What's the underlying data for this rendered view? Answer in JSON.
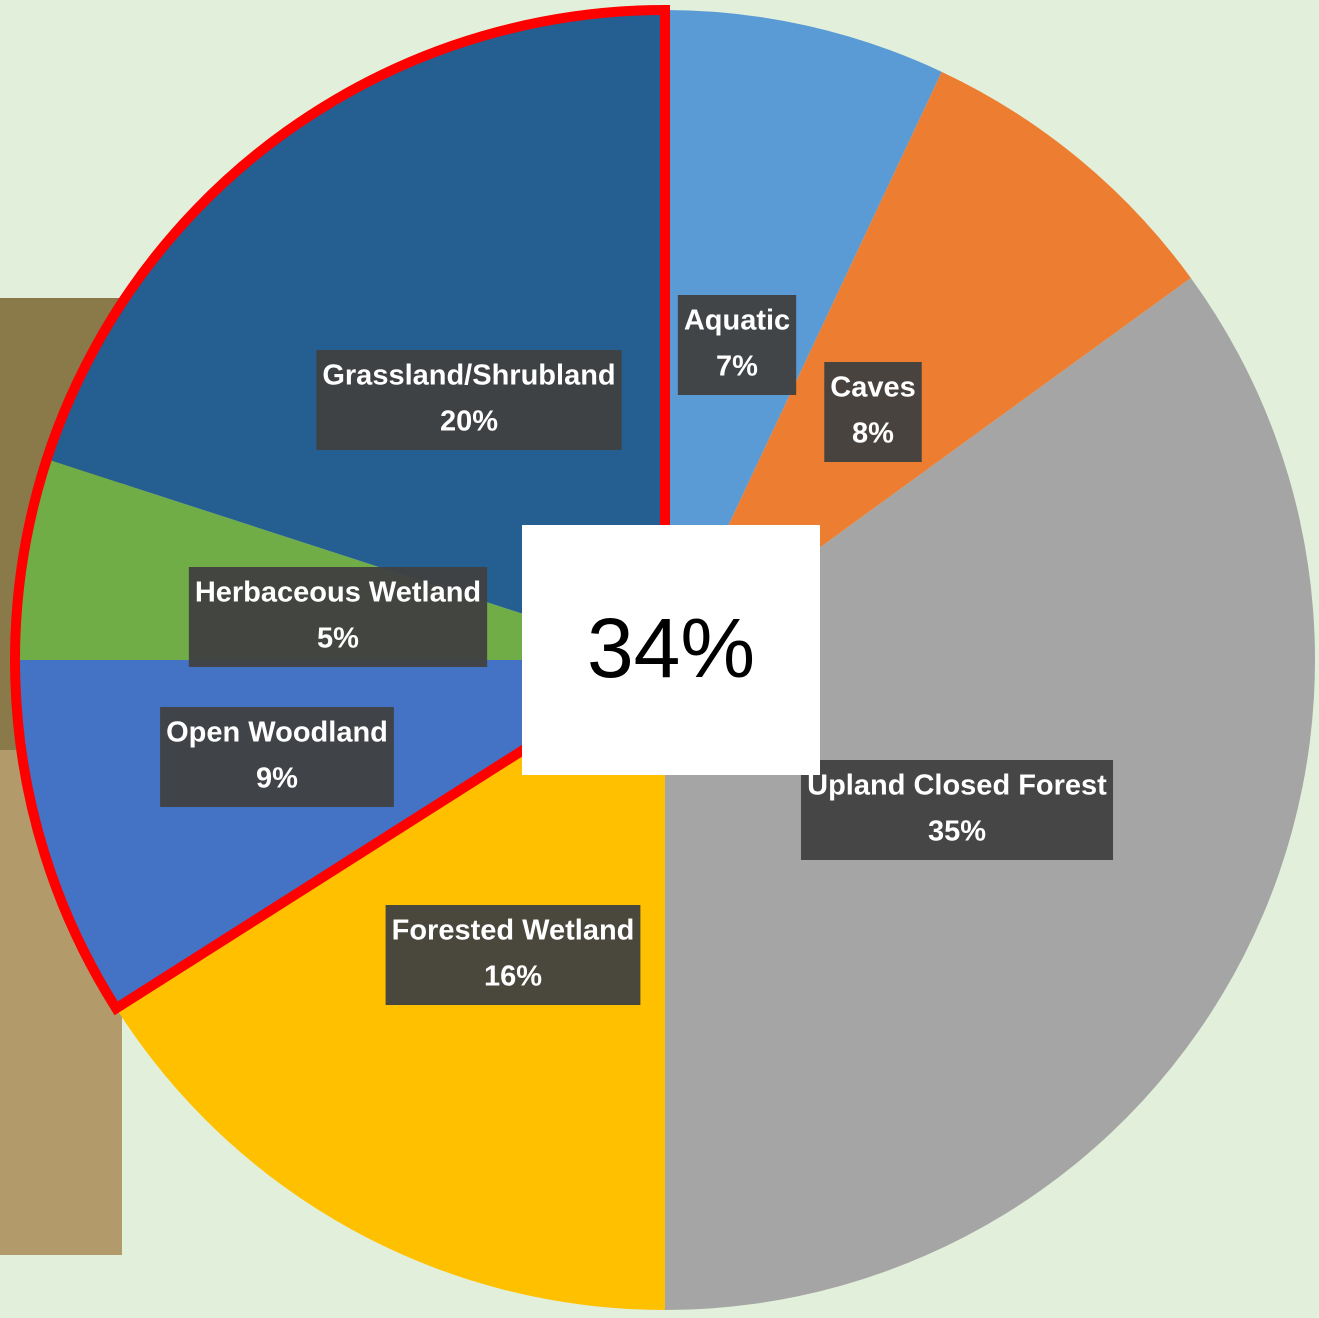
{
  "chart_data": {
    "type": "pie",
    "categories": [
      "Aquatic",
      "Caves",
      "Upland Closed Forest",
      "Forested Wetland",
      "Open Woodland",
      "Herbaceous Wetland",
      "Grassland/Shrubland"
    ],
    "values": [
      7,
      8,
      35,
      16,
      9,
      5,
      20
    ],
    "value_labels": [
      "7%",
      "8%",
      "35%",
      "16%",
      "9%",
      "5%",
      "20%"
    ],
    "colors": [
      "#5b9bd5",
      "#ed7d31",
      "#a5a5a5",
      "#ffc000",
      "#4472c4",
      "#70ad47",
      "#255e91"
    ],
    "annotation": "34%",
    "highlight": {
      "categories": [
        "Open Woodland",
        "Herbaceous Wetland",
        "Grassland/Shrubland"
      ],
      "color": "#ff0000"
    }
  }
}
